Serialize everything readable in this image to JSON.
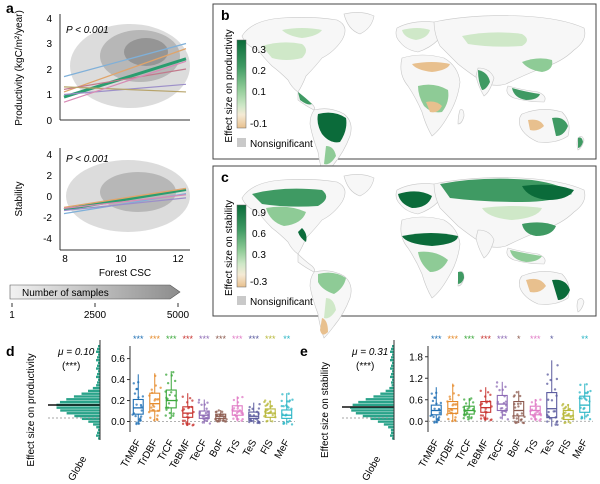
{
  "colors": {
    "scatter_bg": "#e6e6e6",
    "axis": "#333333",
    "map_land": "#f7f7f7",
    "map_border": "#c8c8c8",
    "nonsig": "#c9c9c9",
    "green_dark": "#0b6b3a",
    "green_mid": "#3f9a63",
    "green_light": "#8ecb96",
    "green_pale": "#cfe8c8",
    "tan": "#e8c08e",
    "hist": "#2aa38a",
    "biome_colors": [
      "#1f6fb4",
      "#e58a2a",
      "#3aa73a",
      "#c8332f",
      "#8e6bb5",
      "#8c5a4e",
      "#e07ac5",
      "#5a5a9e",
      "#b8b83a",
      "#2ab5c5"
    ]
  },
  "panels": {
    "a": {
      "label": "a",
      "top": {
        "ylabel": "Productivity (kgC/m²/year)",
        "ptext": "P < 0.001",
        "y_ticks": [
          "0",
          "1",
          "2",
          "3",
          "4"
        ],
        "lines": [
          {
            "color": "#2a9d6f",
            "y1": 0.9,
            "y2": 2.4,
            "width": 3
          },
          {
            "color": "#e0a46a",
            "y1": 1.1,
            "y2": 2.8,
            "width": 1.3
          },
          {
            "color": "#7fb0d9",
            "y1": 1.7,
            "y2": 3.0,
            "width": 1.3
          },
          {
            "color": "#c27a8c",
            "y1": 1.2,
            "y2": 2.0,
            "width": 1.2
          },
          {
            "color": "#9c8fc9",
            "y1": 1.0,
            "y2": 1.4,
            "width": 1.2
          },
          {
            "color": "#b7a36a",
            "y1": 1.3,
            "y2": 1.1,
            "width": 1.2
          },
          {
            "color": "#d88ab5",
            "y1": 0.7,
            "y2": 2.3,
            "width": 1.2
          }
        ]
      },
      "bottom": {
        "ylabel": "Stability",
        "ptext": "P < 0.001",
        "y_ticks": [
          "4",
          "2",
          "0",
          "-2",
          "-4"
        ],
        "x_ticks": [
          "8",
          "10",
          "12"
        ],
        "xlabel": "Forest CSC",
        "lines": [
          {
            "color": "#2a9d6f",
            "y1": -0.9,
            "y2": 1.0,
            "width": 3
          },
          {
            "color": "#e0a46a",
            "y1": -0.7,
            "y2": 1.1,
            "width": 1.3
          },
          {
            "color": "#7fb0d9",
            "y1": -1.3,
            "y2": 0.6,
            "width": 1.3
          },
          {
            "color": "#9c8fc9",
            "y1": -1.0,
            "y2": 0.2,
            "width": 1.2
          },
          {
            "color": "#d88ab5",
            "y1": -0.8,
            "y2": 0.5,
            "width": 1.2
          }
        ]
      },
      "samples": {
        "title": "Number of samples",
        "ticks": [
          "1",
          "2500",
          "5000"
        ]
      }
    },
    "b": {
      "label": "b",
      "cbar_label": "Effect size on productivity",
      "cbar_ticks": [
        "0.3",
        "0.2",
        "0.1",
        "-0.1"
      ],
      "nonsig": "Nonsignificant"
    },
    "c": {
      "label": "c",
      "cbar_label": "Effect size on stability",
      "cbar_ticks": [
        "0.9",
        "0.6",
        "0.3",
        "-0.3"
      ],
      "nonsig": "Nonsignificant"
    },
    "d": {
      "label": "d",
      "mu_text": "μ = 0.10",
      "sig_text": "(***)",
      "ylabel": "Effect size on productivity",
      "globe": "Globe",
      "y_ticks": [
        "0.6",
        "0.4",
        "0.2",
        "0.0"
      ],
      "categories": [
        "TrMBF",
        "TrDBF",
        "TrCF",
        "TeBMF",
        "TeCF",
        "BoF",
        "TrS",
        "TeS",
        "FlS",
        "MeF"
      ],
      "stars": [
        "***",
        "***",
        "***",
        "***",
        "***",
        "***",
        "***",
        "***",
        "***",
        "**"
      ],
      "boxes": [
        {
          "q1": 0.07,
          "med": 0.13,
          "q3": 0.21,
          "lo": -0.03,
          "hi": 0.45
        },
        {
          "q1": 0.1,
          "med": 0.17,
          "q3": 0.27,
          "lo": 0.01,
          "hi": 0.46
        },
        {
          "q1": 0.13,
          "med": 0.2,
          "q3": 0.3,
          "lo": 0.03,
          "hi": 0.48
        },
        {
          "q1": 0.04,
          "med": 0.08,
          "q3": 0.14,
          "lo": -0.04,
          "hi": 0.27
        },
        {
          "q1": 0.03,
          "med": 0.06,
          "q3": 0.1,
          "lo": -0.02,
          "hi": 0.21
        },
        {
          "q1": 0.03,
          "med": 0.05,
          "q3": 0.07,
          "lo": 0.0,
          "hi": 0.11
        },
        {
          "q1": 0.06,
          "med": 0.1,
          "q3": 0.15,
          "lo": 0.0,
          "hi": 0.24
        },
        {
          "q1": 0.03,
          "med": 0.05,
          "q3": 0.09,
          "lo": -0.02,
          "hi": 0.18
        },
        {
          "q1": 0.04,
          "med": 0.08,
          "q3": 0.12,
          "lo": 0.0,
          "hi": 0.2
        },
        {
          "q1": 0.03,
          "med": 0.06,
          "q3": 0.11,
          "lo": -0.03,
          "hi": 0.27
        }
      ]
    },
    "e": {
      "label": "e",
      "mu_text": "μ = 0.31",
      "sig_text": "(***)",
      "ylabel": "Effect size on stability",
      "globe": "Globe",
      "y_ticks": [
        "1.8",
        "1.2",
        "0.6",
        "0.0"
      ],
      "categories": [
        "TrMBF",
        "TrDBF",
        "TrCF",
        "TeBMF",
        "TeCF",
        "BoF",
        "TrS",
        "TeS",
        "FlS",
        "MeF"
      ],
      "stars": [
        "***",
        "***",
        "***",
        "***",
        "***",
        "*",
        "***",
        "*",
        "",
        "**"
      ],
      "boxes": [
        {
          "q1": 0.18,
          "med": 0.3,
          "q3": 0.45,
          "lo": -0.05,
          "hi": 0.95
        },
        {
          "q1": 0.22,
          "med": 0.35,
          "q3": 0.55,
          "lo": 0.0,
          "hi": 1.05
        },
        {
          "q1": 0.2,
          "med": 0.3,
          "q3": 0.42,
          "lo": 0.05,
          "hi": 0.65
        },
        {
          "q1": 0.25,
          "med": 0.38,
          "q3": 0.55,
          "lo": 0.02,
          "hi": 0.95
        },
        {
          "q1": 0.3,
          "med": 0.48,
          "q3": 0.72,
          "lo": 0.05,
          "hi": 1.1
        },
        {
          "q1": 0.15,
          "med": 0.3,
          "q3": 0.55,
          "lo": -0.05,
          "hi": 0.85
        },
        {
          "q1": 0.18,
          "med": 0.3,
          "q3": 0.42,
          "lo": 0.0,
          "hi": 0.62
        },
        {
          "q1": 0.1,
          "med": 0.35,
          "q3": 0.8,
          "lo": -0.15,
          "hi": 1.7
        },
        {
          "q1": 0.05,
          "med": 0.15,
          "q3": 0.3,
          "lo": -0.05,
          "hi": 0.48
        },
        {
          "q1": 0.25,
          "med": 0.45,
          "q3": 0.7,
          "lo": 0.05,
          "hi": 1.05
        }
      ]
    }
  },
  "chart_data": [
    {
      "type": "scatter",
      "panel": "a-top",
      "ylabel": "Productivity (kgC/m²/year)",
      "xlim": [
        7.5,
        12
      ],
      "ylim": [
        -0.5,
        4.5
      ],
      "annotation": "P < 0.001",
      "series_lines": [
        [
          8,
          0.9,
          11.8,
          2.4
        ],
        [
          8,
          1.1,
          11.8,
          2.8
        ],
        [
          8,
          1.7,
          11.8,
          3.0
        ],
        [
          8,
          1.2,
          11.8,
          2.0
        ],
        [
          8,
          1.0,
          11.8,
          1.4
        ],
        [
          8,
          1.3,
          11.8,
          1.1
        ],
        [
          8,
          0.7,
          11.8,
          2.3
        ]
      ]
    },
    {
      "type": "scatter",
      "panel": "a-bottom",
      "ylabel": "Stability",
      "xlabel": "Forest CSC",
      "xlim": [
        7.5,
        12
      ],
      "ylim": [
        -5,
        5
      ],
      "annotation": "P < 0.001",
      "series_lines": [
        [
          8,
          -0.9,
          11.8,
          1.0
        ],
        [
          8,
          -0.7,
          11.8,
          1.1
        ],
        [
          8,
          -1.3,
          11.8,
          0.6
        ],
        [
          8,
          -1.0,
          11.8,
          0.2
        ],
        [
          8,
          -0.8,
          11.8,
          0.5
        ]
      ]
    },
    {
      "type": "bar",
      "panel": "d",
      "categories": [
        "TrMBF",
        "TrDBF",
        "TrCF",
        "TeBMF",
        "TeCF",
        "BoF",
        "TrS",
        "TeS",
        "FlS",
        "MeF"
      ],
      "values": [
        0.13,
        0.17,
        0.2,
        0.08,
        0.06,
        0.05,
        0.1,
        0.05,
        0.08,
        0.06
      ],
      "ylabel": "Effect size on productivity",
      "ylim": [
        -0.1,
        0.72
      ]
    },
    {
      "type": "bar",
      "panel": "e",
      "categories": [
        "TrMBF",
        "TrDBF",
        "TrCF",
        "TeBMF",
        "TeCF",
        "BoF",
        "TrS",
        "TeS",
        "FlS",
        "MeF"
      ],
      "values": [
        0.3,
        0.35,
        0.3,
        0.38,
        0.48,
        0.3,
        0.3,
        0.35,
        0.15,
        0.45
      ],
      "ylabel": "Effect size on stability",
      "ylim": [
        -0.3,
        2.1
      ]
    }
  ]
}
